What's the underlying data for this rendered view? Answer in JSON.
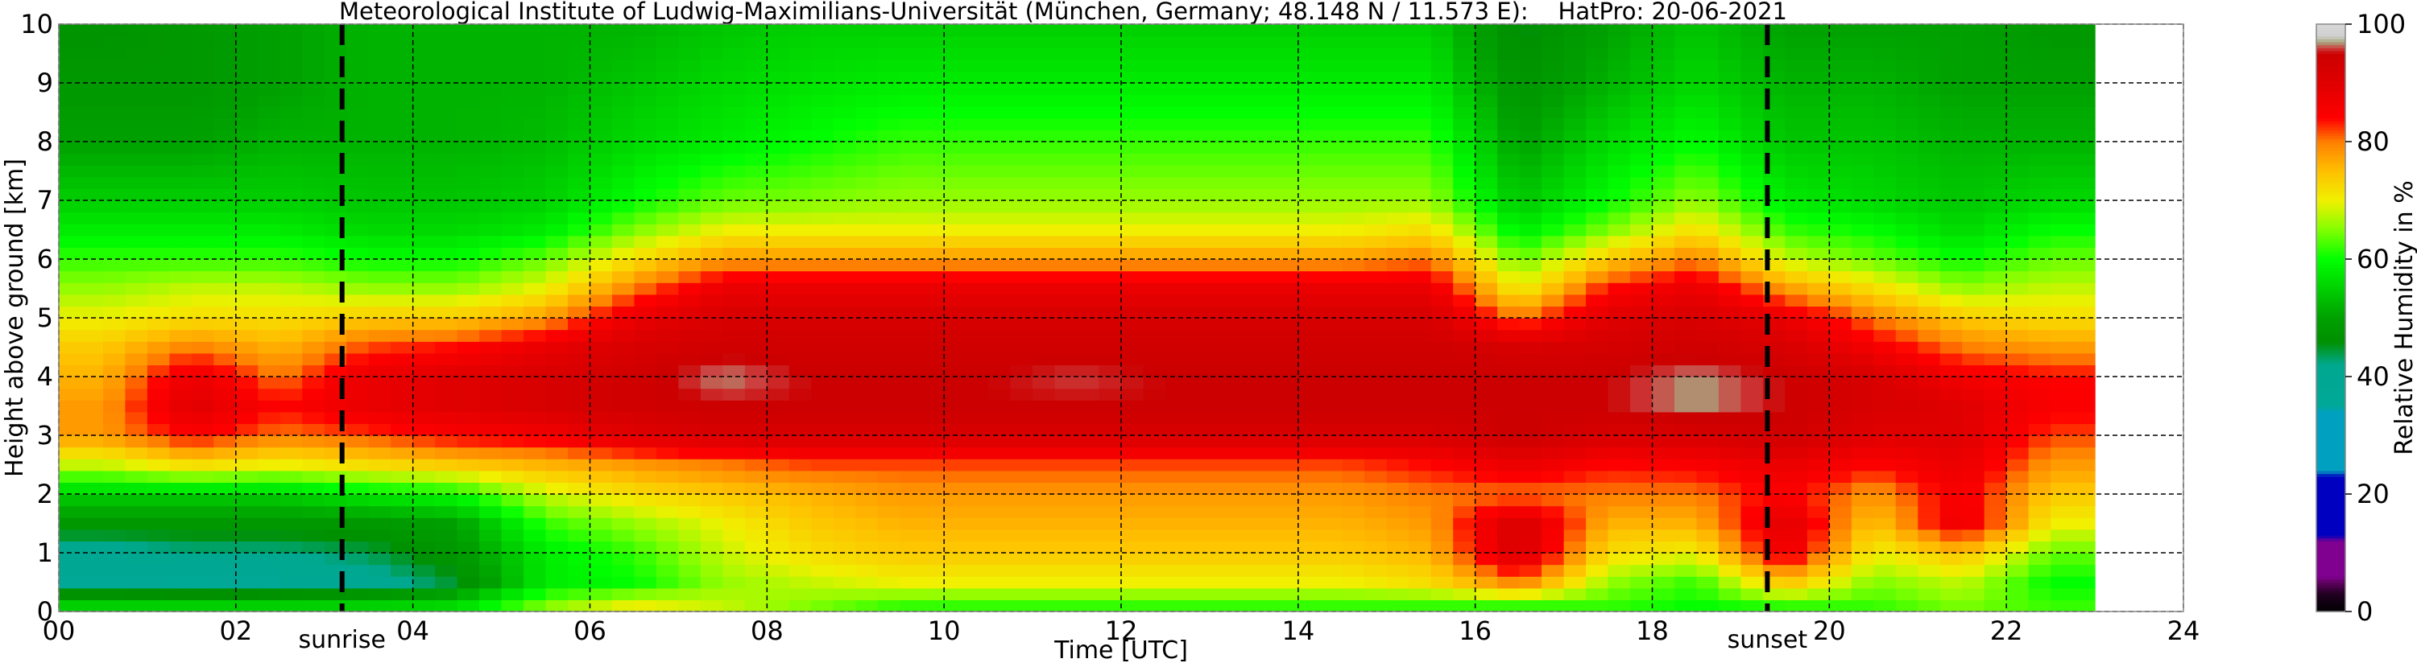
{
  "chart_data": {
    "type": "heatmap",
    "title": "Meteorological Institute of Ludwig-Maximilians-Universität (München, Germany; 48.148 N / 11.573 E):    HatPro: 20-06-2021",
    "xlabel": "Time [UTC]",
    "ylabel": "Height above ground [km]",
    "xlim": [
      0,
      24
    ],
    "ylim": [
      0,
      10
    ],
    "xticks": [
      "00",
      "02",
      "04",
      "06",
      "08",
      "10",
      "12",
      "14",
      "16",
      "18",
      "20",
      "22",
      "24"
    ],
    "yticks": [
      "0",
      "1",
      "2",
      "3",
      "4",
      "5",
      "6",
      "7",
      "8",
      "9",
      "10"
    ],
    "grid": true,
    "annotations": [
      {
        "label": "sunrise",
        "time_utc": 3.2
      },
      {
        "label": "sunset",
        "time_utc": 19.3
      }
    ],
    "data_end_time_utc": 23,
    "colorbar": {
      "label": "Relative Humidity in %",
      "range": [
        0,
        100
      ],
      "ticks": [
        "0",
        "20",
        "40",
        "60",
        "80",
        "100"
      ],
      "stops": [
        [
          0,
          "#000000"
        ],
        [
          3,
          "#200020"
        ],
        [
          5,
          "#600060"
        ],
        [
          6,
          "#800090"
        ],
        [
          12,
          "#800090"
        ],
        [
          13,
          "#0000c0"
        ],
        [
          23,
          "#0000c0"
        ],
        [
          24,
          "#00a0c0"
        ],
        [
          34,
          "#00a0c0"
        ],
        [
          35,
          "#00a898"
        ],
        [
          42,
          "#00a890"
        ],
        [
          46,
          "#009000"
        ],
        [
          50,
          "#00a000"
        ],
        [
          60,
          "#00ff00"
        ],
        [
          65,
          "#80ff00"
        ],
        [
          70,
          "#f0f000"
        ],
        [
          75,
          "#ffc000"
        ],
        [
          80,
          "#ff8000"
        ],
        [
          84,
          "#ff0000"
        ],
        [
          90,
          "#e00000"
        ],
        [
          95,
          "#cc0000"
        ],
        [
          96,
          "#cc4040"
        ],
        [
          97,
          "#a8a880"
        ],
        [
          98,
          "#d0d0d0"
        ],
        [
          100,
          "#d8d8d8"
        ]
      ]
    },
    "heights_km": [
      0.1,
      0.5,
      1,
      1.5,
      2,
      2.5,
      3,
      3.5,
      4,
      4.5,
      5,
      5.5,
      6,
      6.5,
      7,
      8,
      9,
      10
    ],
    "times_utc": [
      0.5,
      1.5,
      2.5,
      3.5,
      4.5,
      5.5,
      6.5,
      7.5,
      8.5,
      9.5,
      10.5,
      11.5,
      12.5,
      13.5,
      14.5,
      15.5,
      16.5,
      17.5,
      18.5,
      19.5,
      20.5,
      21.5,
      22.5
    ],
    "rh_percent": [
      [
        55,
        38,
        40,
        48,
        55,
        68,
        78,
        78,
        76,
        74,
        70,
        66,
        62,
        58,
        55,
        50,
        48,
        47
      ],
      [
        55,
        37,
        42,
        48,
        55,
        72,
        85,
        90,
        88,
        80,
        72,
        68,
        62,
        58,
        55,
        50,
        48,
        48
      ],
      [
        55,
        38,
        42,
        48,
        55,
        70,
        80,
        84,
        80,
        76,
        72,
        68,
        62,
        58,
        55,
        52,
        50,
        50
      ],
      [
        55,
        40,
        44,
        48,
        58,
        72,
        82,
        88,
        88,
        82,
        74,
        66,
        60,
        56,
        54,
        52,
        52,
        52
      ],
      [
        56,
        45,
        48,
        50,
        60,
        74,
        85,
        90,
        90,
        84,
        74,
        66,
        60,
        56,
        54,
        52,
        52,
        52
      ],
      [
        65,
        58,
        58,
        62,
        68,
        76,
        86,
        92,
        92,
        88,
        78,
        70,
        64,
        58,
        55,
        53,
        52,
        52
      ],
      [
        70,
        60,
        62,
        66,
        72,
        78,
        90,
        94,
        94,
        92,
        88,
        80,
        72,
        65,
        60,
        56,
        54,
        52
      ],
      [
        68,
        66,
        68,
        70,
        74,
        80,
        92,
        95,
        97,
        94,
        92,
        88,
        78,
        70,
        64,
        58,
        56,
        54
      ],
      [
        65,
        68,
        72,
        74,
        76,
        82,
        92,
        95,
        95,
        94,
        92,
        88,
        78,
        70,
        65,
        60,
        57,
        55
      ],
      [
        62,
        70,
        74,
        76,
        78,
        82,
        92,
        95,
        95,
        94,
        92,
        88,
        78,
        70,
        66,
        62,
        58,
        55
      ],
      [
        62,
        70,
        74,
        76,
        78,
        82,
        92,
        95,
        95,
        94,
        92,
        88,
        78,
        70,
        66,
        62,
        58,
        55
      ],
      [
        62,
        70,
        74,
        76,
        78,
        82,
        92,
        95,
        96,
        94,
        92,
        88,
        78,
        70,
        66,
        62,
        58,
        55
      ],
      [
        62,
        70,
        74,
        76,
        78,
        82,
        92,
        95,
        95,
        94,
        92,
        88,
        78,
        70,
        66,
        62,
        58,
        55
      ],
      [
        62,
        70,
        74,
        76,
        78,
        82,
        92,
        95,
        95,
        94,
        92,
        88,
        78,
        70,
        66,
        62,
        58,
        55
      ],
      [
        62,
        70,
        74,
        76,
        78,
        82,
        92,
        95,
        95,
        94,
        92,
        88,
        78,
        70,
        66,
        62,
        58,
        55
      ],
      [
        62,
        72,
        76,
        78,
        80,
        84,
        92,
        95,
        95,
        94,
        92,
        88,
        80,
        72,
        66,
        62,
        58,
        55
      ],
      [
        62,
        80,
        92,
        92,
        80,
        88,
        95,
        95,
        95,
        92,
        80,
        70,
        64,
        58,
        54,
        50,
        47,
        45
      ],
      [
        62,
        66,
        72,
        76,
        80,
        84,
        92,
        95,
        95,
        93,
        90,
        84,
        74,
        65,
        60,
        56,
        52,
        50
      ],
      [
        60,
        62,
        70,
        76,
        80,
        85,
        92,
        97,
        97,
        94,
        92,
        88,
        80,
        72,
        66,
        60,
        56,
        54
      ],
      [
        62,
        75,
        88,
        90,
        85,
        88,
        94,
        95,
        95,
        92,
        88,
        78,
        68,
        62,
        58,
        54,
        52,
        50
      ],
      [
        62,
        65,
        70,
        74,
        78,
        84,
        90,
        92,
        92,
        86,
        80,
        72,
        64,
        60,
        56,
        54,
        52,
        50
      ],
      [
        65,
        68,
        75,
        88,
        86,
        88,
        90,
        90,
        86,
        80,
        74,
        66,
        60,
        56,
        54,
        52,
        50,
        50
      ],
      [
        62,
        60,
        64,
        70,
        74,
        78,
        82,
        85,
        84,
        78,
        72,
        68,
        64,
        60,
        56,
        52,
        50,
        48
      ]
    ]
  }
}
